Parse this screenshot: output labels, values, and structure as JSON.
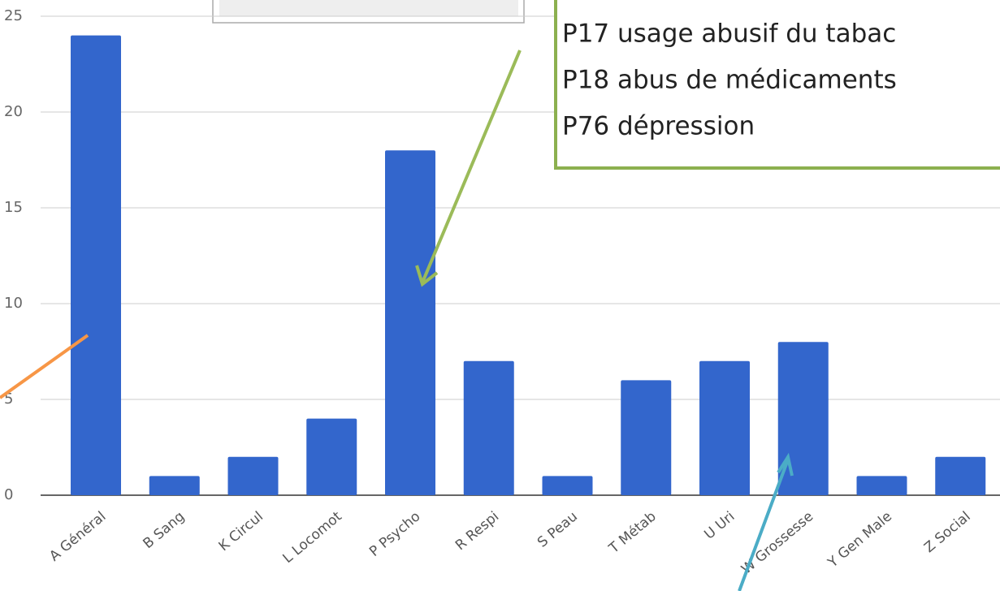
{
  "chart_data": {
    "type": "bar",
    "categories": [
      "A Général",
      "B Sang",
      "K Circul",
      "L Locomot",
      "P Psycho",
      "R Respi",
      "S Peau",
      "T Métab",
      "U Uri",
      "W Grossesse",
      "Y Gen Male",
      "Z Social"
    ],
    "values": [
      24,
      1,
      2,
      4,
      18,
      7,
      1,
      6,
      7,
      8,
      1,
      2
    ],
    "color": "#3366cc",
    "ylim": [
      0,
      25
    ],
    "yticks": [
      0,
      5,
      10,
      15,
      20,
      25
    ],
    "grid": true,
    "annotations": [
      "P17 usage abusif du tabac",
      "P18 abus de médicaments",
      "P76 dépression"
    ]
  }
}
